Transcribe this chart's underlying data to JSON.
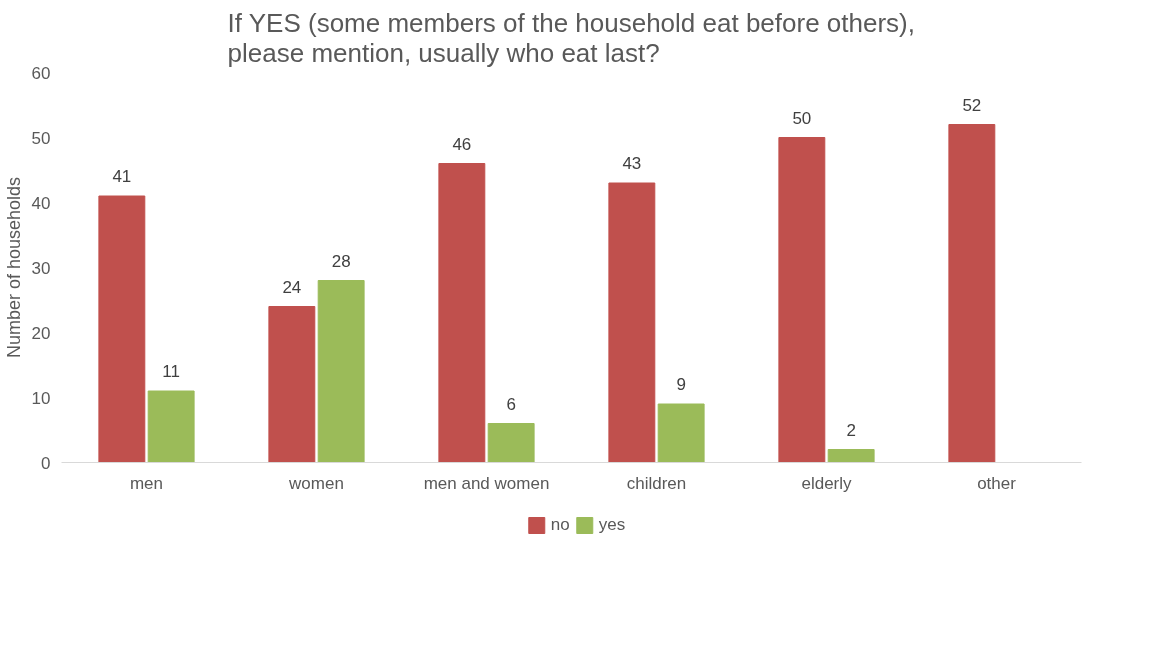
{
  "chart_data": {
    "type": "bar",
    "title": "If YES (some members of the household eat before others),\nplease mention, usually who eat last?",
    "ylabel": "Number of households",
    "categories": [
      "men",
      "women",
      "men and women",
      "children",
      "elderly",
      "other"
    ],
    "series": [
      {
        "name": "no",
        "color": "#c0504d",
        "values": [
          41,
          24,
          46,
          43,
          50,
          52
        ]
      },
      {
        "name": "yes",
        "color": "#9bbb59",
        "values": [
          11,
          28,
          6,
          9,
          2,
          null
        ]
      }
    ],
    "ylim": [
      0,
      60
    ],
    "yticks": [
      0,
      10,
      20,
      30,
      40,
      50,
      60
    ],
    "grid": false,
    "legend": "bottom",
    "data_labels": true
  }
}
